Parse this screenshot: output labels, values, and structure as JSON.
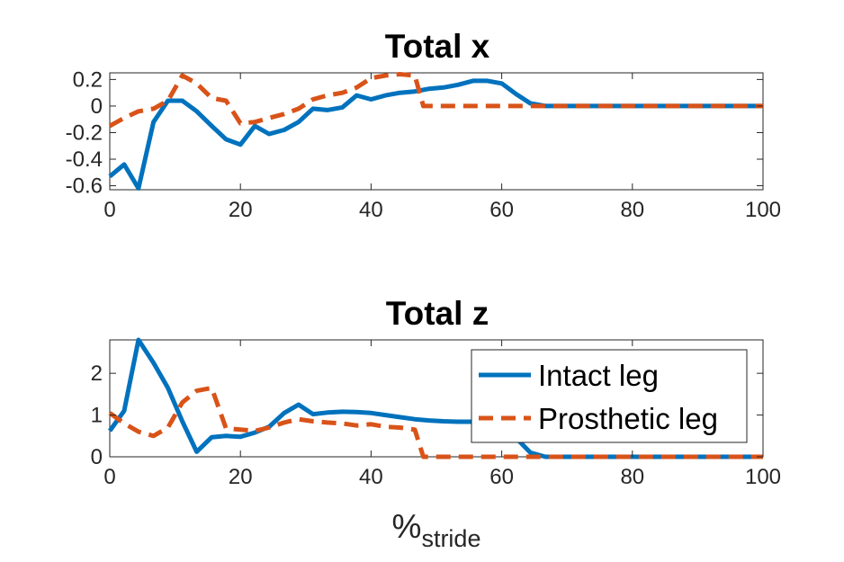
{
  "chart_data": [
    {
      "type": "line",
      "title": "Total x",
      "xlabel": "",
      "ylabel": "",
      "xlim": [
        0,
        100
      ],
      "ylim": [
        -0.63,
        0.25
      ],
      "xticks": [
        0,
        20,
        40,
        60,
        80,
        100
      ],
      "xtick_labels": [
        "0",
        "20",
        "40",
        "60",
        "80",
        "100"
      ],
      "yticks": [
        0.2,
        0,
        -0.2,
        -0.4,
        -0.6
      ],
      "ytick_labels": [
        "0.2",
        "0",
        "-0.2",
        "-0.4",
        "-0.6"
      ],
      "grid": false,
      "series": [
        {
          "name": "Intact leg",
          "color": "#0072BD",
          "style": "solid",
          "x": [
            0,
            2.2,
            4.4,
            6.7,
            8.9,
            11.1,
            13.3,
            15.6,
            17.8,
            20,
            22.2,
            24.4,
            26.7,
            28.9,
            31.1,
            33.3,
            35.6,
            37.8,
            40,
            42.2,
            44.4,
            46.7,
            48.9,
            51.1,
            53.3,
            55.6,
            57.8,
            60,
            62.2,
            64.4,
            66.7,
            70,
            80,
            90,
            100
          ],
          "y": [
            -0.53,
            -0.44,
            -0.62,
            -0.12,
            0.04,
            0.04,
            -0.04,
            -0.15,
            -0.25,
            -0.29,
            -0.15,
            -0.21,
            -0.18,
            -0.12,
            -0.02,
            -0.03,
            -0.01,
            0.08,
            0.05,
            0.08,
            0.1,
            0.11,
            0.13,
            0.14,
            0.16,
            0.19,
            0.19,
            0.17,
            0.09,
            0.02,
            0.0,
            0.0,
            0.0,
            0.0,
            0.0
          ]
        },
        {
          "name": "Prosthetic leg",
          "color": "#D95319",
          "style": "dashed",
          "x": [
            0,
            2.2,
            4.4,
            6.7,
            8.9,
            11.1,
            13.3,
            15.6,
            17.8,
            20,
            22.2,
            24.4,
            26.7,
            28.9,
            31.1,
            33.3,
            35.6,
            37.8,
            40,
            42.2,
            44.4,
            46.7,
            48,
            60,
            80,
            100
          ],
          "y": [
            -0.15,
            -0.09,
            -0.04,
            -0.02,
            0.04,
            0.23,
            0.17,
            0.06,
            0.04,
            -0.13,
            -0.12,
            -0.09,
            -0.06,
            -0.02,
            0.05,
            0.08,
            0.1,
            0.14,
            0.21,
            0.23,
            0.24,
            0.23,
            0.0,
            0.0,
            0.0,
            0.0
          ]
        }
      ]
    },
    {
      "type": "line",
      "title": "Total z",
      "xlabel": "%",
      "xlabel_sub": "stride",
      "ylabel": "",
      "xlim": [
        0,
        100
      ],
      "ylim": [
        0,
        2.8
      ],
      "xticks": [
        0,
        20,
        40,
        60,
        80,
        100
      ],
      "xtick_labels": [
        "0",
        "20",
        "40",
        "60",
        "80",
        "100"
      ],
      "yticks": [
        0,
        1,
        2
      ],
      "ytick_labels": [
        "0",
        "1",
        "2"
      ],
      "grid": false,
      "legend": {
        "position": "top-right",
        "entries": [
          "Intact leg",
          "Prosthetic leg"
        ]
      },
      "series": [
        {
          "name": "Intact leg",
          "color": "#0072BD",
          "style": "solid",
          "x": [
            0,
            2.2,
            4.4,
            6.7,
            8.9,
            11.1,
            13.3,
            15.6,
            17.8,
            20,
            22.2,
            24.4,
            26.7,
            28.9,
            31.1,
            33.3,
            35.6,
            37.8,
            40,
            42.2,
            44.4,
            46.7,
            48.9,
            51.1,
            53.3,
            55.6,
            57.8,
            60,
            62.2,
            64.4,
            66.7,
            70,
            80,
            90,
            100
          ],
          "y": [
            0.62,
            1.1,
            2.8,
            2.25,
            1.65,
            0.85,
            0.12,
            0.47,
            0.5,
            0.48,
            0.58,
            0.72,
            1.05,
            1.25,
            1.02,
            1.06,
            1.08,
            1.07,
            1.05,
            1.0,
            0.95,
            0.9,
            0.87,
            0.85,
            0.84,
            0.84,
            0.83,
            0.8,
            0.45,
            0.1,
            0.0,
            0.0,
            0.0,
            0.0,
            0.0
          ]
        },
        {
          "name": "Prosthetic leg",
          "color": "#D95319",
          "style": "dashed",
          "x": [
            0,
            2.2,
            4.4,
            6.7,
            8.9,
            11.1,
            13.3,
            15.6,
            17.8,
            20,
            22.2,
            24.4,
            26.7,
            28.9,
            31.1,
            33.3,
            35.6,
            37.8,
            40,
            42.2,
            44.4,
            46.7,
            48,
            60,
            80,
            100
          ],
          "y": [
            1.05,
            0.8,
            0.6,
            0.5,
            0.7,
            1.3,
            1.58,
            1.65,
            0.68,
            0.65,
            0.62,
            0.7,
            0.82,
            0.9,
            0.85,
            0.82,
            0.8,
            0.75,
            0.78,
            0.72,
            0.7,
            0.65,
            0.0,
            0.0,
            0.0,
            0.0
          ]
        }
      ]
    }
  ]
}
